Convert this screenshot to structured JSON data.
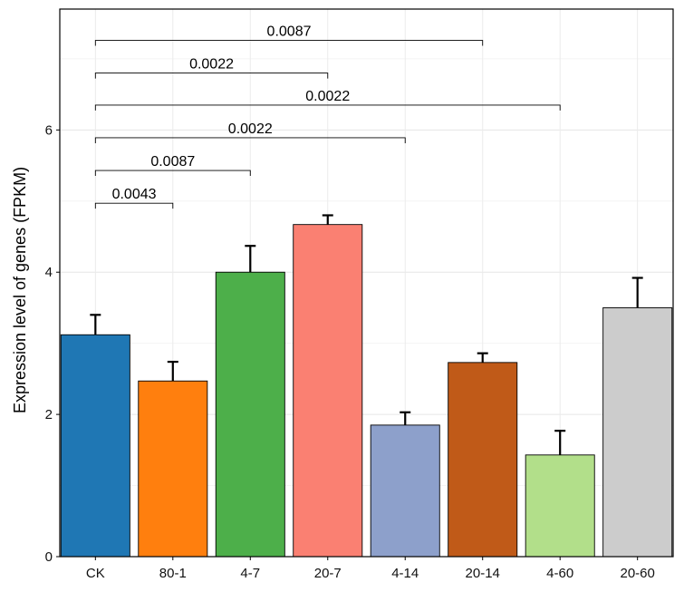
{
  "chart_data": {
    "type": "bar",
    "title": "",
    "xlabel": "",
    "ylabel": "Expression level of genes (FPKM)",
    "ylim": [
      0,
      7.7
    ],
    "yticks": [
      0,
      2,
      4,
      6
    ],
    "grid": true,
    "categories": [
      "CK",
      "80-1",
      "4-7",
      "20-7",
      "4-14",
      "20-14",
      "4-60",
      "20-60"
    ],
    "values": [
      3.12,
      2.47,
      4.0,
      4.67,
      1.85,
      2.73,
      1.43,
      3.5
    ],
    "errors": [
      0.28,
      0.27,
      0.37,
      0.13,
      0.18,
      0.13,
      0.34,
      0.42
    ],
    "colors": [
      "#1f77b4",
      "#ff7f0e",
      "#4daf4a",
      "#fa8072",
      "#8da0cb",
      "#c05a18",
      "#b2df8a",
      "#cccccc"
    ],
    "comparisons": [
      {
        "from": "CK",
        "to": "80-1",
        "label": "0.0043",
        "y": 4.97
      },
      {
        "from": "CK",
        "to": "4-7",
        "label": "0.0087",
        "y": 5.43
      },
      {
        "from": "CK",
        "to": "4-14",
        "label": "0.0022",
        "y": 5.89
      },
      {
        "from": "CK",
        "to": "4-60",
        "label": "0.0022",
        "y": 6.35
      },
      {
        "from": "CK",
        "to": "20-7",
        "label": "0.0022",
        "y": 6.8
      },
      {
        "from": "CK",
        "to": "20-14",
        "label": "0.0087",
        "y": 7.26
      }
    ]
  }
}
